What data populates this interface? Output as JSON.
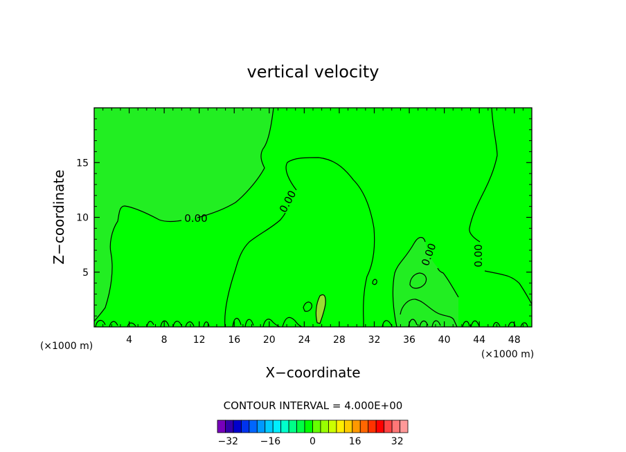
{
  "chart_data": {
    "type": "contour",
    "title": "vertical velocity",
    "xlabel": "X−coordinate",
    "ylabel": "Z−coordinate",
    "x_unit_label": "(×1000 m)",
    "x_unit_label_right": "(×1000 m)",
    "xlim": [
      0,
      50
    ],
    "ylim": [
      0,
      20
    ],
    "x_ticks": [
      4,
      8,
      12,
      16,
      20,
      24,
      28,
      32,
      36,
      40,
      44,
      48
    ],
    "y_ticks": [
      5,
      10,
      15
    ],
    "grid": false,
    "contour_interval_text": "CONTOUR INTERVAL =  4.000E+00",
    "contour_labels": [
      "0.00",
      "0.00",
      "0.00",
      "0.00",
      "0.00"
    ],
    "field_colors": {
      "negative": "#22ee22",
      "positive": "#00ff00",
      "small_positive": "#99dd33"
    },
    "colorbar": {
      "ticks": [
        -32,
        -16,
        0,
        16,
        32
      ],
      "tick_labels": [
        "−32",
        "−16",
        "0",
        "16",
        "32"
      ],
      "range": [
        -36,
        36
      ],
      "colors": [
        "#7700bb",
        "#3300aa",
        "#0000cc",
        "#0033ee",
        "#0066ff",
        "#0099ff",
        "#00ccff",
        "#00eeff",
        "#00ffcc",
        "#00ff88",
        "#00ff44",
        "#00ff00",
        "#66ff00",
        "#99ff00",
        "#ccff00",
        "#ffee00",
        "#ffcc00",
        "#ff9900",
        "#ff6600",
        "#ff3300",
        "#ff0000",
        "#ff4444",
        "#ff7777",
        "#ff9999"
      ]
    }
  }
}
